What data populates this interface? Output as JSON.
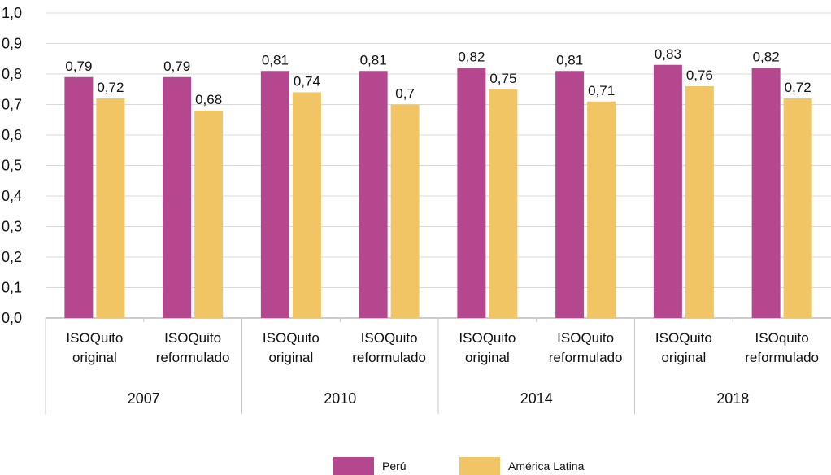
{
  "chart_data": {
    "type": "bar",
    "ylim": [
      0,
      1.0
    ],
    "yticks": [
      "0,0",
      "0,1",
      "0,2",
      "0,3",
      "0,4",
      "0,5",
      "0,6",
      "0,7",
      "0,8",
      "0,9",
      "1,0"
    ],
    "grid": true,
    "legend_position": "bottom",
    "groups": [
      {
        "year": "2007",
        "categories": [
          [
            "ISOQuito",
            "original"
          ],
          [
            "ISOQuito",
            "reformulado"
          ]
        ]
      },
      {
        "year": "2010",
        "categories": [
          [
            "ISOQuito",
            "original"
          ],
          [
            "ISOQuito",
            "reformulado"
          ]
        ]
      },
      {
        "year": "2014",
        "categories": [
          [
            "ISOQuito",
            "original"
          ],
          [
            "ISOQuito",
            "reformulado"
          ]
        ]
      },
      {
        "year": "2018",
        "categories": [
          [
            "ISOQuito",
            "original"
          ],
          [
            "ISOquito",
            "reformulado"
          ]
        ]
      }
    ],
    "series": [
      {
        "name": "Perú",
        "color": "#b5478f",
        "values": [
          0.79,
          0.79,
          0.81,
          0.81,
          0.82,
          0.81,
          0.83,
          0.82
        ],
        "labels": [
          "0,79",
          "0,79",
          "0,81",
          "0,81",
          "0,82",
          "0,81",
          "0,83",
          "0,82"
        ]
      },
      {
        "name": "América Latina",
        "color": "#f2c564",
        "values": [
          0.72,
          0.68,
          0.74,
          0.7,
          0.75,
          0.71,
          0.76,
          0.72
        ],
        "labels": [
          "0,72",
          "0,68",
          "0,74",
          "0,7",
          "0,75",
          "0,71",
          "0,76",
          "0,72"
        ]
      }
    ]
  },
  "legend": {
    "items": [
      {
        "label": "Perú",
        "color": "#b5478f"
      },
      {
        "label": "América Latina",
        "color": "#f2c564"
      }
    ]
  }
}
